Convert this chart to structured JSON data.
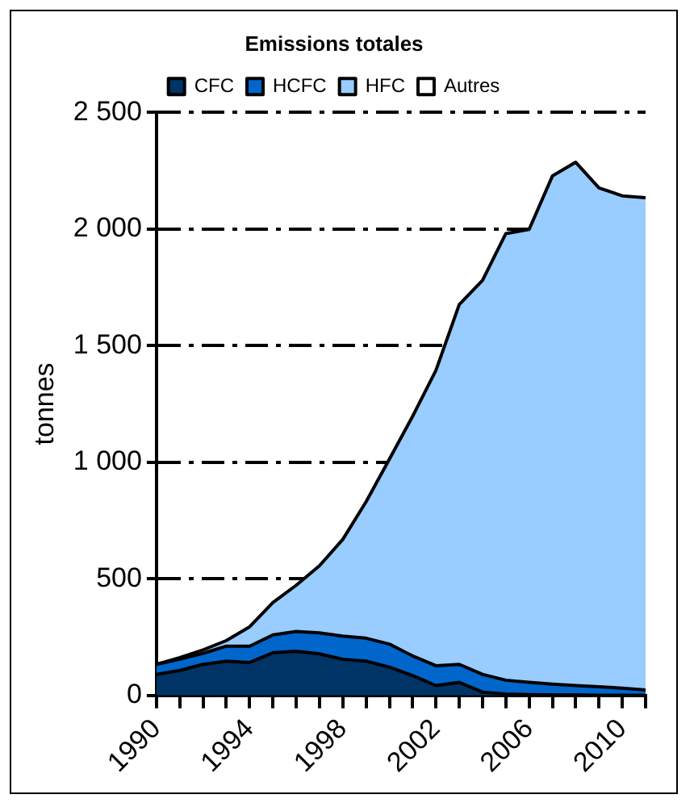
{
  "chart_data": {
    "type": "area",
    "title": "Emissions totales",
    "ylabel": "tonnes",
    "stacked": true,
    "grid": "y",
    "legend": "top",
    "x": [
      1990,
      1991,
      1992,
      1993,
      1994,
      1995,
      1996,
      1997,
      1998,
      1999,
      2000,
      2001,
      2002,
      2003,
      2004,
      2005,
      2006,
      2007,
      2008,
      2009,
      2010,
      2011
    ],
    "xlim": [
      1990,
      2011
    ],
    "xticks": [
      1990,
      {
        "value": 1991,
        "label": null
      },
      {
        "value": 1992,
        "label": null
      },
      {
        "value": 1993,
        "label": null
      },
      1994,
      {
        "value": 1995,
        "label": null
      },
      {
        "value": 1996,
        "label": null
      },
      {
        "value": 1997,
        "label": null
      },
      1998,
      {
        "value": 1999,
        "label": null
      },
      {
        "value": 2000,
        "label": null
      },
      {
        "value": 2001,
        "label": null
      },
      2002,
      {
        "value": 2003,
        "label": null
      },
      {
        "value": 2004,
        "label": null
      },
      {
        "value": 2005,
        "label": null
      },
      2006,
      {
        "value": 2007,
        "label": null
      },
      {
        "value": 2008,
        "label": null
      },
      {
        "value": 2009,
        "label": null
      },
      2010,
      {
        "value": 2011,
        "label": null
      }
    ],
    "ylim": [
      0,
      2500
    ],
    "yticks": [
      0,
      500,
      {
        "value": 1000,
        "label": "1 000"
      },
      {
        "value": 1500,
        "label": "1 500"
      },
      {
        "value": 2000,
        "label": "2 000"
      },
      {
        "value": 2500,
        "label": "2 500"
      }
    ],
    "series": [
      {
        "name": "CFC",
        "color": "#003366",
        "values": [
          90,
          107,
          133,
          147,
          141,
          183,
          189,
          178,
          155,
          147,
          121,
          85,
          42,
          56,
          14,
          6,
          3,
          2,
          2,
          1,
          1,
          1
        ]
      },
      {
        "name": "HCFC",
        "color": "#0066cc",
        "values": [
          43,
          48,
          47,
          64,
          70,
          76,
          85,
          90,
          99,
          98,
          99,
          84,
          85,
          77,
          76,
          59,
          53,
          46,
          40,
          36,
          30,
          22
        ]
      },
      {
        "name": "HFC",
        "color": "#99ccff",
        "values": [
          0,
          7,
          15,
          24,
          83,
          139,
          198,
          288,
          415,
          585,
          793,
          1028,
          1267,
          1543,
          1690,
          1915,
          1942,
          2179,
          2244,
          2139,
          2111,
          2111
        ]
      },
      {
        "name": "Autres",
        "color": "#ffffff",
        "values": [
          null,
          null,
          null,
          null,
          null,
          null,
          null,
          null,
          null,
          null,
          null,
          null,
          null,
          null,
          null,
          null,
          null,
          null,
          null,
          null,
          null,
          null
        ]
      }
    ]
  }
}
